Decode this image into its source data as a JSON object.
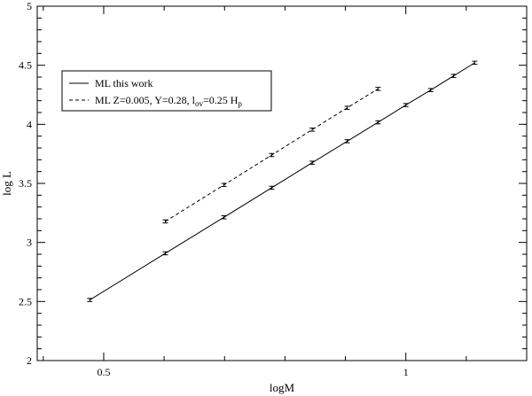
{
  "chart_data": {
    "type": "scatter",
    "title": "",
    "xlabel": "logM",
    "ylabel": "log L",
    "xlim": [
      0.39,
      1.2
    ],
    "ylim": [
      2,
      5
    ],
    "x_major_ticks": [
      0.5,
      1
    ],
    "x_tick_labels": [
      "0.5",
      "1"
    ],
    "x_minor_step": 0.1,
    "y_major_ticks": [
      2,
      2.5,
      3,
      3.5,
      4,
      4.5,
      5
    ],
    "y_tick_labels": [
      "2",
      "2.5",
      "3",
      "3.5",
      "4",
      "4.5",
      "5"
    ],
    "y_minor_step": 0.1,
    "grid": false,
    "legend_position": "top-left",
    "legend": {
      "entry1": "ML this work",
      "entry2_prefix": "ML Z=0.005, Y=0.28, l",
      "entry2_sub1": "ov",
      "entry2_mid": "=0.25 H",
      "entry2_sub2": "p"
    },
    "series": [
      {
        "line_style": "solid",
        "error": 0.013,
        "x": [
          0.477,
          0.602,
          0.699,
          0.778,
          0.845,
          0.903,
          0.954,
          1.0,
          1.041,
          1.079,
          1.114
        ],
        "y": [
          2.513,
          2.908,
          3.213,
          3.463,
          3.675,
          3.857,
          4.017,
          4.163,
          4.29,
          4.41,
          4.521
        ]
      },
      {
        "line_style": "dashed",
        "error": 0.013,
        "x": [
          0.602,
          0.699,
          0.778,
          0.845,
          0.903,
          0.954
        ],
        "y": [
          3.178,
          3.487,
          3.74,
          3.955,
          4.14,
          4.3
        ]
      }
    ]
  }
}
